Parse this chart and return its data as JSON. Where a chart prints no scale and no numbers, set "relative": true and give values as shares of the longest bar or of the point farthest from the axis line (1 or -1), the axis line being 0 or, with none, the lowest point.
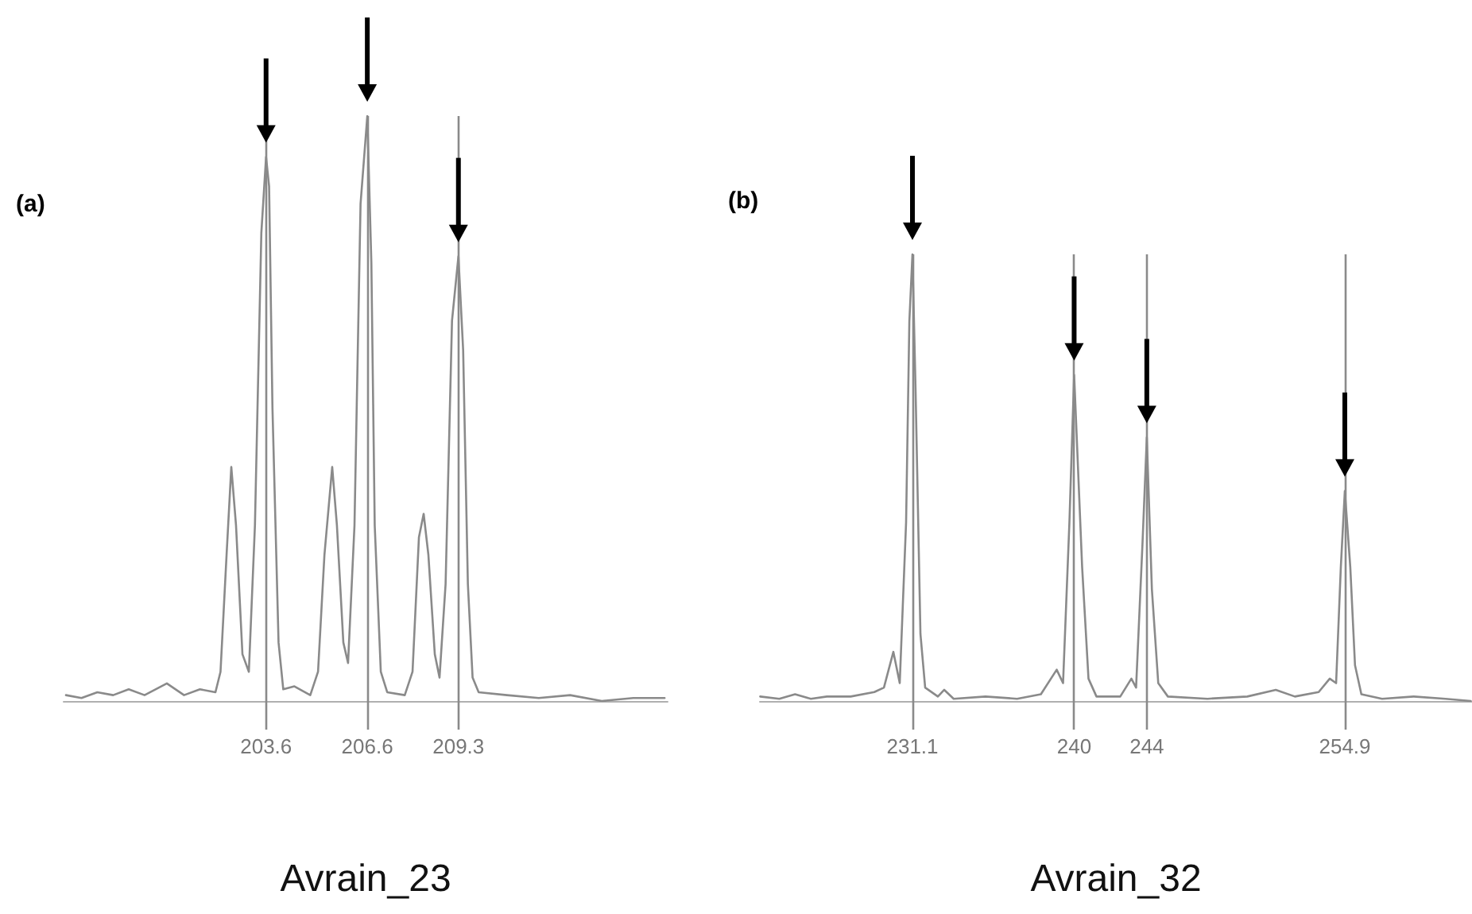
{
  "chart_data": [
    {
      "type": "line",
      "relative": true,
      "xlabel": "Avrain_23",
      "annotations": [
        "(a)"
      ],
      "xlim": [
        197.6,
        215.5
      ],
      "xticks": [
        203.6,
        206.6,
        209.3
      ],
      "grid": "x",
      "marker": "none",
      "line_style": "solid",
      "series": [
        {
          "color": "#8a8a8a",
          "x": [
            197.67,
            198.13,
            198.6,
            199.07,
            199.53,
            200.0,
            200.66,
            201.17,
            201.64,
            202.1,
            202.25,
            202.43,
            202.57,
            202.71,
            202.9,
            203.09,
            203.27,
            203.46,
            203.6,
            203.69,
            203.79,
            203.97,
            204.11,
            204.44,
            204.91,
            205.14,
            205.33,
            205.56,
            205.7,
            205.89,
            206.03,
            206.22,
            206.4,
            206.6,
            206.72,
            206.82,
            207.0,
            207.19,
            207.71,
            207.94,
            208.13,
            208.27,
            208.41,
            208.6,
            208.74,
            208.92,
            209.11,
            209.3,
            209.44,
            209.58,
            209.72,
            209.9,
            210.74,
            211.68,
            212.61,
            213.55,
            214.48,
            215.41
          ],
          "values": [
            0.01,
            0.005,
            0.015,
            0.01,
            0.02,
            0.01,
            0.03,
            0.01,
            0.02,
            0.015,
            0.05,
            0.25,
            0.4,
            0.3,
            0.08,
            0.05,
            0.3,
            0.8,
            0.93,
            0.88,
            0.5,
            0.1,
            0.02,
            0.025,
            0.01,
            0.05,
            0.25,
            0.4,
            0.3,
            0.1,
            0.065,
            0.3,
            0.85,
            1.0,
            0.75,
            0.3,
            0.05,
            0.015,
            0.01,
            0.05,
            0.28,
            0.32,
            0.25,
            0.08,
            0.04,
            0.2,
            0.65,
            0.76,
            0.6,
            0.2,
            0.04,
            0.015,
            0.01,
            0.005,
            0.01,
            0.0,
            0.005,
            0.005
          ]
        }
      ]
    },
    {
      "type": "line",
      "relative": true,
      "xlabel": "Avrain_32",
      "annotations": [
        "(b)"
      ],
      "xlim": [
        222.7,
        261.9
      ],
      "xticks": [
        231.1,
        240,
        244,
        254.9
      ],
      "grid": "x",
      "marker": "none",
      "line_style": "solid",
      "series": [
        {
          "color": "#8a8a8a",
          "x": [
            222.72,
            223.77,
            224.64,
            225.51,
            226.39,
            227.7,
            229.0,
            229.53,
            230.05,
            230.4,
            230.75,
            230.93,
            231.1,
            231.27,
            231.54,
            231.8,
            232.5,
            232.85,
            233.37,
            235.12,
            236.86,
            238.17,
            239.04,
            239.39,
            239.74,
            240,
            240.44,
            240.79,
            241.23,
            242.54,
            243.15,
            243.41,
            243.76,
            244,
            244.28,
            244.63,
            245.16,
            247.34,
            249.53,
            251.1,
            252.15,
            253.46,
            254.07,
            254.42,
            254.68,
            254.9,
            255.2,
            255.46,
            255.81,
            256.95,
            258.69,
            260.44,
            261.83
          ],
          "values": [
            0.01,
            0.005,
            0.015,
            0.005,
            0.01,
            0.01,
            0.02,
            0.03,
            0.11,
            0.04,
            0.4,
            0.85,
            1.0,
            0.7,
            0.15,
            0.03,
            0.01,
            0.025,
            0.005,
            0.01,
            0.005,
            0.015,
            0.07,
            0.04,
            0.4,
            0.73,
            0.3,
            0.05,
            0.01,
            0.01,
            0.05,
            0.03,
            0.35,
            0.59,
            0.25,
            0.04,
            0.01,
            0.005,
            0.01,
            0.025,
            0.01,
            0.02,
            0.05,
            0.04,
            0.3,
            0.47,
            0.3,
            0.08,
            0.015,
            0.005,
            0.01,
            0.005,
            0.0
          ]
        }
      ]
    }
  ]
}
